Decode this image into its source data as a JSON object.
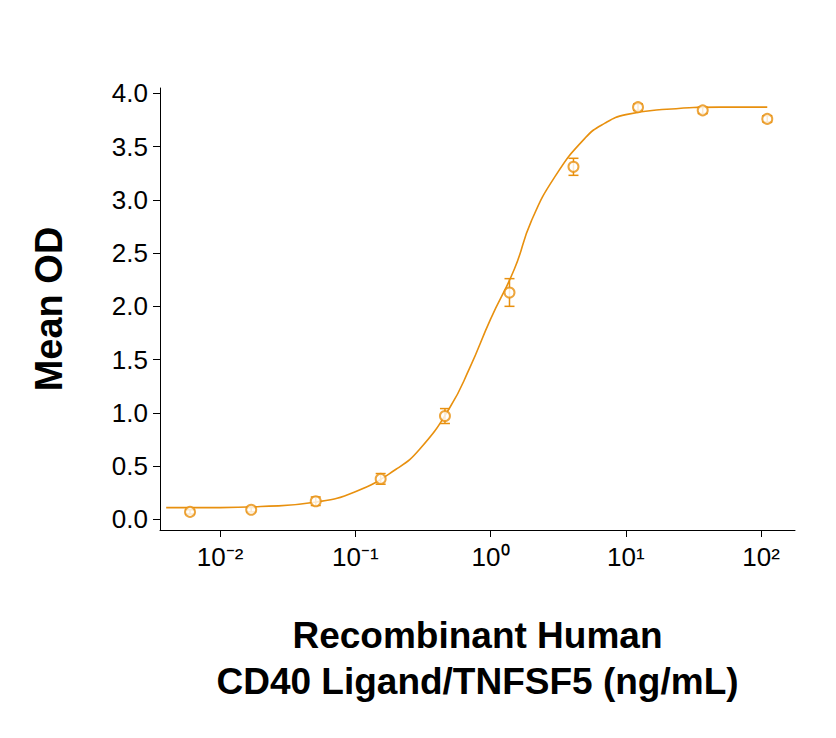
{
  "chart_data": {
    "type": "scatter",
    "xlabel": "Recombinant Human\nCD40 Ligand/TNFSF5 (ng/mL)",
    "ylabel": "Mean OD",
    "x": [
      0.006,
      0.017,
      0.051,
      0.154,
      0.46,
      1.38,
      4.1,
      12.3,
      37,
      111
    ],
    "values": [
      0.07,
      0.09,
      0.17,
      0.38,
      0.97,
      2.13,
      3.31,
      3.87,
      3.84,
      3.76
    ],
    "errors": [
      0.02,
      0.02,
      0.04,
      0.05,
      0.07,
      0.13,
      0.08,
      0.03,
      0.03,
      0.03
    ],
    "fit": {
      "x": [
        0.004,
        0.01,
        0.02,
        0.05,
        0.1,
        0.2,
        0.3,
        0.5,
        0.7,
        1,
        1.5,
        2,
        3,
        5,
        7,
        10,
        20,
        50,
        111
      ],
      "values": [
        0.11,
        0.11,
        0.12,
        0.16,
        0.26,
        0.47,
        0.66,
        1.05,
        1.42,
        1.88,
        2.35,
        2.8,
        3.22,
        3.58,
        3.72,
        3.8,
        3.85,
        3.87,
        3.87
      ]
    },
    "color": "#e8900e",
    "marker": "open circle",
    "log": "x",
    "grid": false,
    "xlim": [
      0.0036,
      178
    ],
    "xticks": [
      {
        "value": 0.01,
        "label": "10⁻²"
      },
      {
        "value": 0.1,
        "label": "10⁻¹"
      },
      {
        "value": 1,
        "label": "10⁰"
      },
      {
        "value": 10,
        "label": "10¹"
      },
      {
        "value": 100,
        "label": "10²"
      }
    ],
    "ylim": [
      -0.1,
      4.05
    ],
    "yticks": [
      {
        "value": 0,
        "label": "0.0"
      },
      0.5,
      {
        "value": 1,
        "label": "1.0"
      },
      1.5,
      {
        "value": 2,
        "label": "2.0"
      },
      2.5,
      {
        "value": 3,
        "label": "3.0"
      },
      3.5,
      {
        "value": 4,
        "label": "4.0"
      }
    ]
  }
}
